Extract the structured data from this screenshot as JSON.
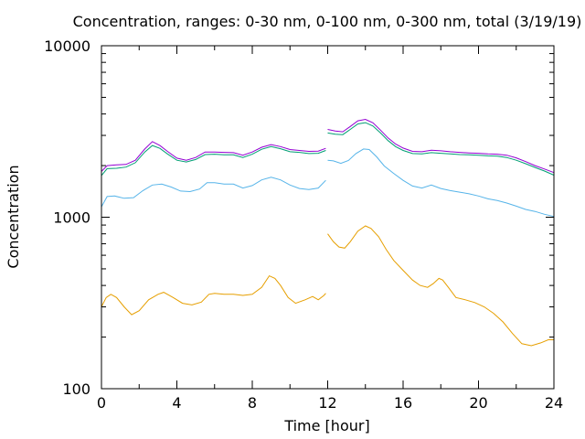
{
  "chart_data": {
    "type": "line",
    "title": "Concentration, ranges: 0-30 nm, 0-100 nm, 0-300 nm, total (3/19/19)",
    "xlabel": "Time [hour]",
    "ylabel": "Concentration",
    "xlim": [
      0,
      24
    ],
    "ylim": [
      100,
      10000
    ],
    "yscale": "log",
    "grid": false,
    "legend": "none",
    "x_ticks": [
      "0",
      "4",
      "8",
      "12",
      "16",
      "20",
      "24"
    ],
    "x_tick_values": [
      0,
      4,
      8,
      12,
      16,
      20,
      24
    ],
    "y_ticks": [
      "100",
      "1000",
      "10000"
    ],
    "y_tick_values": [
      100,
      1000,
      10000
    ],
    "series": [
      {
        "color": "#e69f00",
        "segments": [
          [
            [
              0.0,
              300
            ],
            [
              0.25,
              340
            ],
            [
              0.5,
              355
            ],
            [
              0.8,
              340
            ],
            [
              1.2,
              300
            ],
            [
              1.6,
              270
            ],
            [
              2.0,
              285
            ],
            [
              2.5,
              330
            ],
            [
              3.0,
              355
            ],
            [
              3.3,
              365
            ],
            [
              3.8,
              340
            ],
            [
              4.3,
              315
            ],
            [
              4.8,
              308
            ],
            [
              5.3,
              320
            ],
            [
              5.7,
              355
            ],
            [
              6.0,
              360
            ],
            [
              6.5,
              355
            ],
            [
              7.0,
              355
            ],
            [
              7.5,
              350
            ],
            [
              8.0,
              355
            ],
            [
              8.5,
              390
            ],
            [
              8.9,
              455
            ],
            [
              9.2,
              440
            ],
            [
              9.5,
              400
            ],
            [
              9.9,
              340
            ],
            [
              10.3,
              315
            ],
            [
              10.8,
              330
            ],
            [
              11.2,
              345
            ],
            [
              11.5,
              330
            ],
            [
              11.8,
              350
            ],
            [
              11.9,
              360
            ]
          ],
          [
            [
              12.0,
              800
            ],
            [
              12.3,
              720
            ],
            [
              12.6,
              670
            ],
            [
              12.9,
              660
            ],
            [
              13.2,
              720
            ],
            [
              13.6,
              830
            ],
            [
              14.0,
              890
            ],
            [
              14.3,
              860
            ],
            [
              14.7,
              770
            ],
            [
              15.1,
              650
            ],
            [
              15.5,
              560
            ],
            [
              16.0,
              490
            ],
            [
              16.5,
              430
            ],
            [
              16.9,
              400
            ],
            [
              17.3,
              390
            ],
            [
              17.6,
              410
            ],
            [
              17.9,
              440
            ],
            [
              18.1,
              430
            ],
            [
              18.4,
              390
            ],
            [
              18.8,
              340
            ],
            [
              19.3,
              330
            ],
            [
              19.8,
              318
            ],
            [
              20.3,
              300
            ],
            [
              20.8,
              275
            ],
            [
              21.3,
              245
            ],
            [
              21.8,
              210
            ],
            [
              22.3,
              183
            ],
            [
              22.8,
              178
            ],
            [
              23.3,
              185
            ],
            [
              23.7,
              193
            ],
            [
              24.0,
              193
            ]
          ]
        ]
      },
      {
        "color": "#56b4e9",
        "segments": [
          [
            [
              0.0,
              1150
            ],
            [
              0.3,
              1320
            ],
            [
              0.7,
              1330
            ],
            [
              1.2,
              1290
            ],
            [
              1.7,
              1300
            ],
            [
              2.2,
              1430
            ],
            [
              2.7,
              1540
            ],
            [
              3.2,
              1560
            ],
            [
              3.7,
              1500
            ],
            [
              4.2,
              1420
            ],
            [
              4.7,
              1410
            ],
            [
              5.2,
              1460
            ],
            [
              5.6,
              1590
            ],
            [
              6.0,
              1590
            ],
            [
              6.5,
              1560
            ],
            [
              7.0,
              1560
            ],
            [
              7.5,
              1480
            ],
            [
              8.0,
              1530
            ],
            [
              8.5,
              1650
            ],
            [
              9.0,
              1710
            ],
            [
              9.5,
              1650
            ],
            [
              10.0,
              1540
            ],
            [
              10.5,
              1470
            ],
            [
              11.0,
              1450
            ],
            [
              11.5,
              1480
            ],
            [
              11.9,
              1640
            ]
          ],
          [
            [
              12.0,
              2150
            ],
            [
              12.3,
              2130
            ],
            [
              12.7,
              2060
            ],
            [
              13.1,
              2140
            ],
            [
              13.5,
              2350
            ],
            [
              13.9,
              2500
            ],
            [
              14.2,
              2480
            ],
            [
              14.6,
              2250
            ],
            [
              15.0,
              1990
            ],
            [
              15.5,
              1800
            ],
            [
              16.0,
              1640
            ],
            [
              16.5,
              1520
            ],
            [
              17.0,
              1480
            ],
            [
              17.5,
              1540
            ],
            [
              18.0,
              1470
            ],
            [
              18.5,
              1430
            ],
            [
              19.0,
              1400
            ],
            [
              19.5,
              1370
            ],
            [
              20.0,
              1330
            ],
            [
              20.5,
              1280
            ],
            [
              21.0,
              1250
            ],
            [
              21.5,
              1210
            ],
            [
              22.0,
              1160
            ],
            [
              22.5,
              1110
            ],
            [
              23.0,
              1080
            ],
            [
              23.5,
              1040
            ],
            [
              24.0,
              1010
            ]
          ]
        ]
      },
      {
        "color": "#009e73",
        "segments": [
          [
            [
              0.0,
              1750
            ],
            [
              0.3,
              1920
            ],
            [
              0.8,
              1930
            ],
            [
              1.3,
              1960
            ],
            [
              1.8,
              2080
            ],
            [
              2.3,
              2400
            ],
            [
              2.7,
              2620
            ],
            [
              3.1,
              2520
            ],
            [
              3.5,
              2340
            ],
            [
              4.0,
              2150
            ],
            [
              4.5,
              2100
            ],
            [
              5.0,
              2170
            ],
            [
              5.5,
              2320
            ],
            [
              6.0,
              2330
            ],
            [
              6.5,
              2310
            ],
            [
              7.0,
              2310
            ],
            [
              7.5,
              2230
            ],
            [
              8.0,
              2330
            ],
            [
              8.5,
              2490
            ],
            [
              9.0,
              2580
            ],
            [
              9.5,
              2510
            ],
            [
              10.0,
              2410
            ],
            [
              10.5,
              2390
            ],
            [
              11.0,
              2350
            ],
            [
              11.5,
              2360
            ],
            [
              11.9,
              2450
            ]
          ],
          [
            [
              12.0,
              3100
            ],
            [
              12.4,
              3050
            ],
            [
              12.8,
              3030
            ],
            [
              13.2,
              3250
            ],
            [
              13.6,
              3500
            ],
            [
              14.0,
              3560
            ],
            [
              14.4,
              3400
            ],
            [
              14.8,
              3100
            ],
            [
              15.2,
              2800
            ],
            [
              15.6,
              2580
            ],
            [
              16.0,
              2450
            ],
            [
              16.5,
              2350
            ],
            [
              17.0,
              2340
            ],
            [
              17.5,
              2380
            ],
            [
              18.0,
              2360
            ],
            [
              18.5,
              2340
            ],
            [
              19.0,
              2320
            ],
            [
              19.5,
              2310
            ],
            [
              20.0,
              2300
            ],
            [
              20.5,
              2280
            ],
            [
              21.0,
              2270
            ],
            [
              21.5,
              2230
            ],
            [
              22.0,
              2150
            ],
            [
              22.5,
              2050
            ],
            [
              23.0,
              1950
            ],
            [
              23.5,
              1860
            ],
            [
              24.0,
              1760
            ]
          ]
        ]
      },
      {
        "color": "#9400d3",
        "segments": [
          [
            [
              0.0,
              1850
            ],
            [
              0.3,
              2000
            ],
            [
              0.8,
              2020
            ],
            [
              1.3,
              2030
            ],
            [
              1.8,
              2150
            ],
            [
              2.3,
              2500
            ],
            [
              2.7,
              2760
            ],
            [
              3.1,
              2620
            ],
            [
              3.5,
              2420
            ],
            [
              4.0,
              2210
            ],
            [
              4.5,
              2150
            ],
            [
              5.0,
              2230
            ],
            [
              5.5,
              2400
            ],
            [
              6.0,
              2400
            ],
            [
              6.5,
              2390
            ],
            [
              7.0,
              2380
            ],
            [
              7.5,
              2300
            ],
            [
              8.0,
              2400
            ],
            [
              8.5,
              2560
            ],
            [
              9.0,
              2650
            ],
            [
              9.5,
              2580
            ],
            [
              10.0,
              2480
            ],
            [
              10.5,
              2450
            ],
            [
              11.0,
              2420
            ],
            [
              11.5,
              2430
            ],
            [
              11.9,
              2520
            ]
          ],
          [
            [
              12.0,
              3250
            ],
            [
              12.4,
              3180
            ],
            [
              12.8,
              3150
            ],
            [
              13.2,
              3380
            ],
            [
              13.6,
              3650
            ],
            [
              14.0,
              3720
            ],
            [
              14.4,
              3550
            ],
            [
              14.8,
              3220
            ],
            [
              15.2,
              2900
            ],
            [
              15.6,
              2670
            ],
            [
              16.0,
              2530
            ],
            [
              16.5,
              2420
            ],
            [
              17.0,
              2410
            ],
            [
              17.5,
              2460
            ],
            [
              18.0,
              2440
            ],
            [
              18.5,
              2410
            ],
            [
              19.0,
              2390
            ],
            [
              19.5,
              2370
            ],
            [
              20.0,
              2360
            ],
            [
              20.5,
              2340
            ],
            [
              21.0,
              2330
            ],
            [
              21.5,
              2300
            ],
            [
              22.0,
              2220
            ],
            [
              22.5,
              2110
            ],
            [
              23.0,
              2000
            ],
            [
              23.5,
              1910
            ],
            [
              24.0,
              1820
            ]
          ]
        ]
      }
    ]
  }
}
